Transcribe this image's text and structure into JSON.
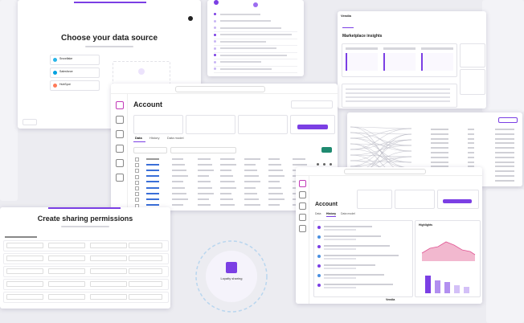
{
  "data_source": {
    "title": "Choose your data source",
    "sources": [
      "Snowflake",
      "Salesforce",
      "HubSpot"
    ]
  },
  "marketplace": {
    "brand": "Vendia",
    "title": "Marketplace insights"
  },
  "account": {
    "title": "Account",
    "tabs": [
      "Data",
      "History",
      "Data model"
    ]
  },
  "account_history": {
    "title": "Account",
    "tabs": [
      "Data",
      "History",
      "Data model"
    ],
    "chart_title": "Highlights",
    "footer": "Vendia"
  },
  "sharing": {
    "title": "Create sharing permissions"
  },
  "diagram": {
    "label": "Loyalty sharing"
  }
}
